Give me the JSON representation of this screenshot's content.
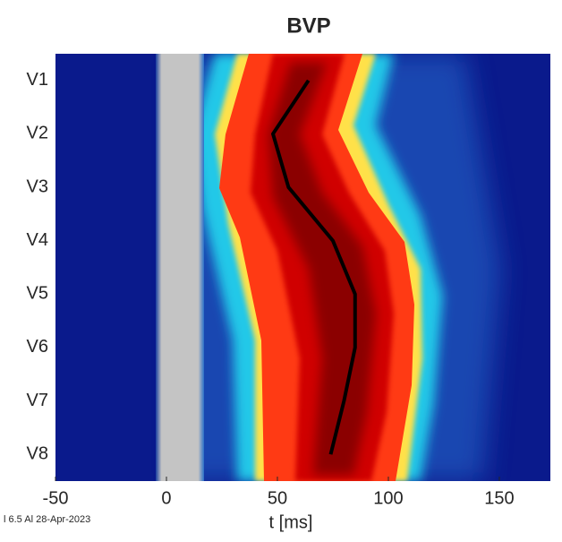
{
  "chart_data": {
    "type": "line",
    "title": "BVP",
    "x_label": "t  [ms]",
    "footnote": "l 6.5 Al 28-Apr-2023",
    "categories": [
      "V1",
      "V2",
      "V3",
      "V4",
      "V5",
      "V6",
      "V7",
      "V8"
    ],
    "values": [
      64,
      48,
      55,
      75,
      85,
      85,
      80,
      74
    ],
    "color": "#000000",
    "xlim": [
      -50,
      173
    ],
    "xticks": [
      -50,
      0,
      50,
      100,
      150
    ]
  }
}
